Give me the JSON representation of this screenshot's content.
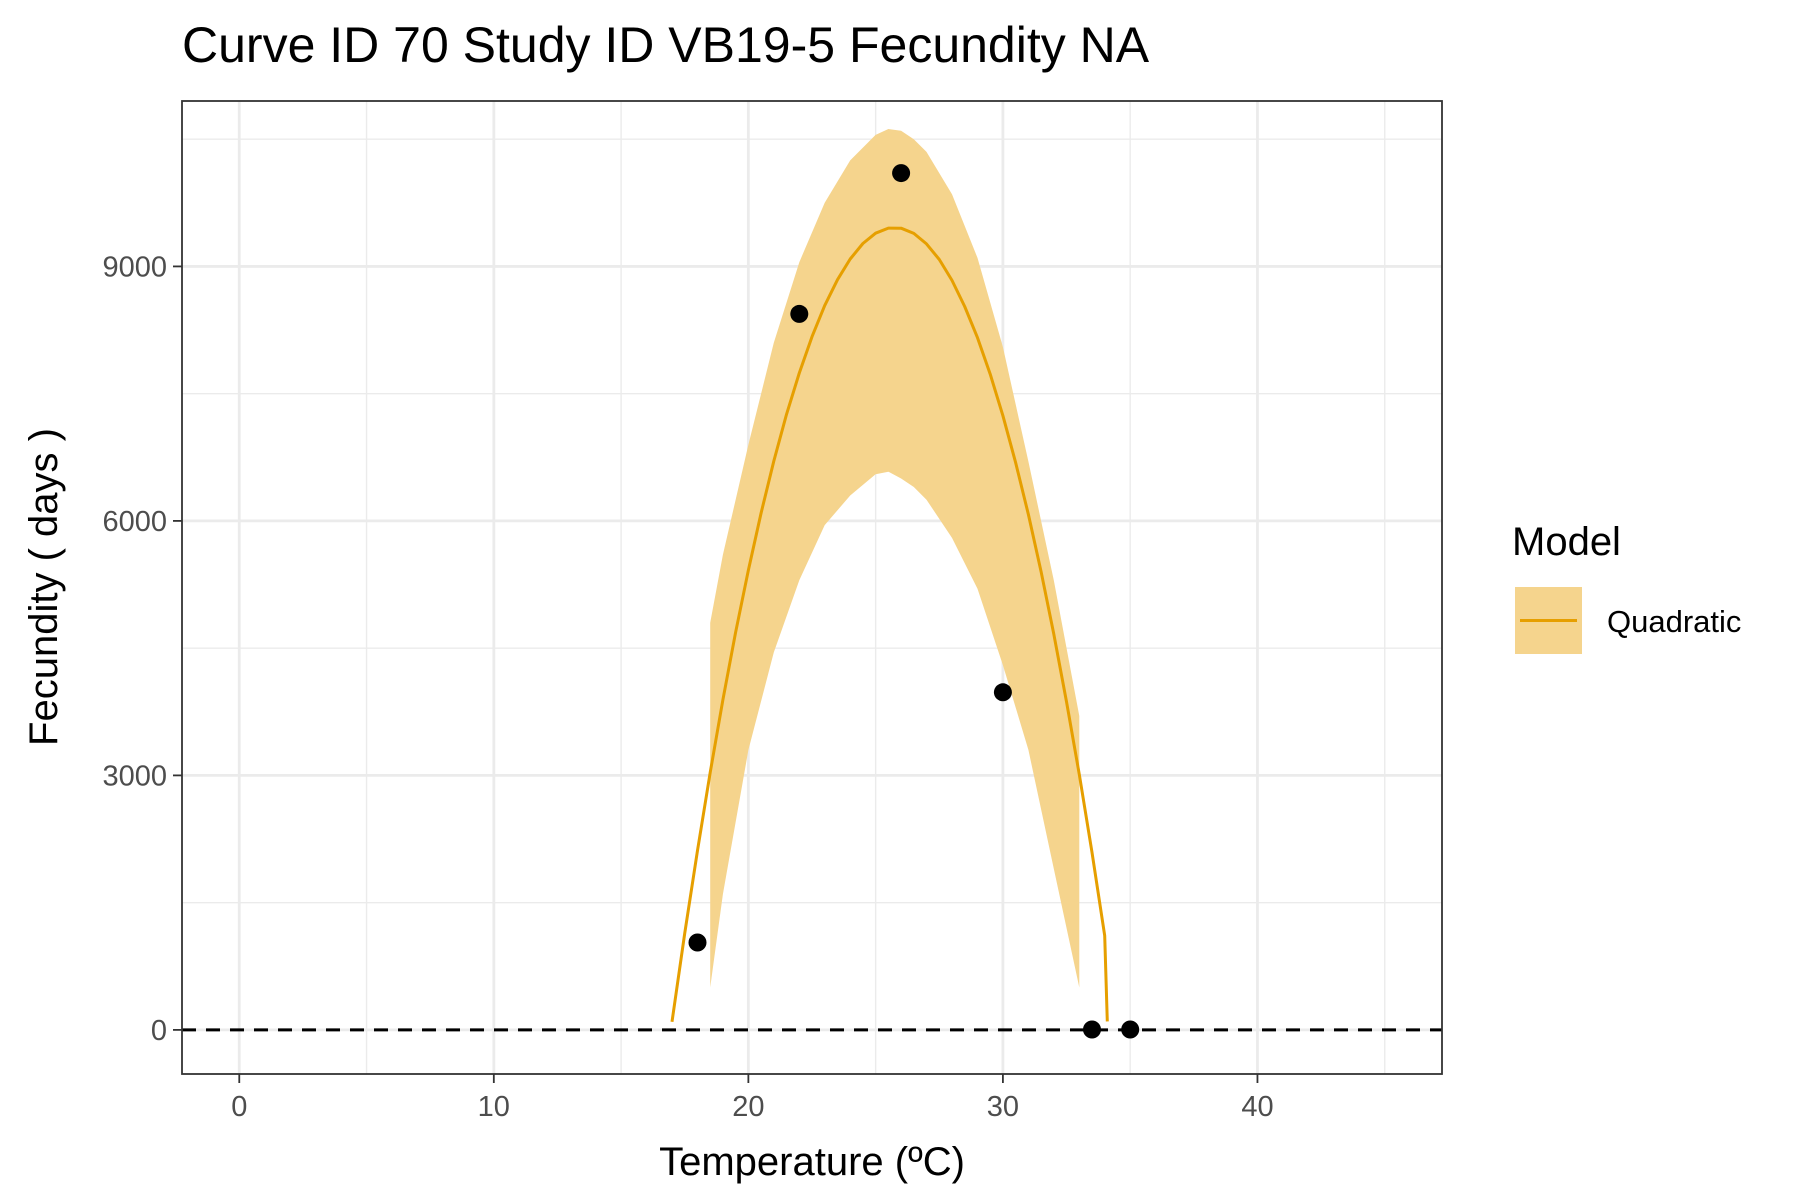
{
  "chart_data": {
    "type": "line",
    "title": "Curve ID 70 Study ID VB19-5 Fecundity NA",
    "xlabel": "Temperature (ºC)",
    "ylabel": "Fecundity ( days )",
    "xlim": [
      -2.25,
      47.25
    ],
    "ylim": [
      -520,
      10950
    ],
    "x_ticks": [
      0,
      10,
      20,
      30,
      40
    ],
    "x_tick_labels": [
      "0",
      "10",
      "20",
      "30",
      "40"
    ],
    "y_ticks": [
      0,
      3000,
      6000,
      9000
    ],
    "y_tick_labels": [
      "0",
      "3000",
      "6000",
      "9000"
    ],
    "grid": true,
    "legend": {
      "title": "Model",
      "position": "right",
      "entries": [
        "Quadratic"
      ]
    },
    "colors": {
      "curve": "#E69F00",
      "ribbon": "#F5D48D",
      "points": "#000000",
      "reference_line": "#000000"
    },
    "reference_line": {
      "y": 0,
      "style": "dashed"
    },
    "points": [
      {
        "x": 18,
        "y": 1030
      },
      {
        "x": 22,
        "y": 8440
      },
      {
        "x": 26,
        "y": 10100
      },
      {
        "x": 30,
        "y": 3980
      },
      {
        "x": 33.5,
        "y": 5
      },
      {
        "x": 35,
        "y": 5
      }
    ],
    "series": [
      {
        "name": "Quadratic",
        "kind": "fitted_curve",
        "x": [
          17,
          17.5,
          18,
          18.5,
          19,
          19.5,
          20,
          20.5,
          21,
          21.5,
          22,
          22.5,
          23,
          23.5,
          24,
          24.5,
          25,
          25.5,
          26,
          26.5,
          27,
          27.5,
          28,
          28.5,
          29,
          29.5,
          30,
          30.5,
          31,
          31.5,
          32,
          32.5,
          33,
          33.5,
          34,
          34.1
        ],
        "y": [
          95,
          1136,
          2115,
          3034,
          3891,
          4686,
          5420,
          6093,
          6705,
          7255,
          7744,
          8172,
          8538,
          8843,
          9087,
          9270,
          9391,
          9452,
          9451,
          9389,
          9265,
          9081,
          8835,
          8528,
          8160,
          7731,
          7240,
          6688,
          6075,
          5401,
          4666,
          3869,
          3011,
          2092,
          1112,
          100
        ]
      },
      {
        "name": "Quadratic",
        "kind": "confidence_band",
        "x": [
          18.5,
          19,
          20,
          21,
          22,
          23,
          24,
          25,
          25.5,
          26,
          26.5,
          27,
          28,
          29,
          30,
          31,
          32,
          33
        ],
        "lower": [
          500,
          1600,
          3300,
          4450,
          5300,
          5950,
          6300,
          6550,
          6580,
          6500,
          6400,
          6250,
          5800,
          5200,
          4300,
          3300,
          1900,
          500
        ],
        "upper": [
          4800,
          5600,
          6900,
          8100,
          9050,
          9750,
          10250,
          10550,
          10620,
          10600,
          10500,
          10350,
          9850,
          9100,
          8050,
          6700,
          5300,
          3700
        ]
      }
    ]
  }
}
